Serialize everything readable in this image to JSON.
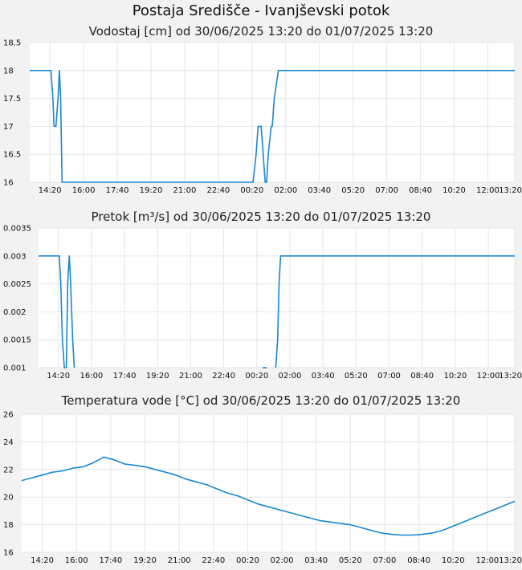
{
  "page": {
    "title": "Postaja Središče - Ivanjševski potok"
  },
  "colors": {
    "line": "#1a87d0",
    "grid": "#e6e6e6",
    "plot_bg": "#ffffff",
    "page_bg": "#f2f2f2"
  },
  "chart_data": [
    {
      "type": "line",
      "title": "Vodostaj [cm] od 30/06/2025 13:20 do 01/07/2025 13:20",
      "xlabel": "",
      "ylabel": "",
      "ylim": [
        16,
        18.5
      ],
      "yticks": [
        16,
        16.5,
        17,
        17.5,
        18,
        18.5
      ],
      "ytick_labels": [
        "16",
        "16.5",
        "17",
        "17.5",
        "18",
        "18.5"
      ],
      "xticks": [
        "14:20",
        "16:00",
        "17:40",
        "19:20",
        "21:00",
        "22:40",
        "00:20",
        "02:00",
        "03:40",
        "05:20",
        "07:00",
        "08:40",
        "10:20",
        "12:00",
        "13:20"
      ],
      "grid": true,
      "series": [
        {
          "x": [
            0,
            1.05,
            1.15,
            1.2,
            1.3,
            1.4,
            1.47,
            1.53,
            1.6,
            11.05,
            11.2,
            11.3,
            11.45,
            11.55,
            11.65,
            11.72,
            11.8,
            11.95,
            12.0,
            12.1,
            12.3,
            13.5,
            20,
            24
          ],
          "y": [
            18,
            18,
            17.5,
            17,
            17,
            17.5,
            18,
            17.5,
            16,
            16,
            16.5,
            17,
            17,
            16.5,
            16,
            16,
            16.5,
            17,
            17,
            17.5,
            18,
            18,
            18,
            18
          ]
        }
      ]
    },
    {
      "type": "line",
      "title": "Pretok [m³/s] od 30/06/2025 13:20 do 01/07/2025 13:20",
      "xlabel": "",
      "ylabel": "",
      "ylim": [
        0.001,
        0.0035
      ],
      "yticks": [
        0.001,
        0.0015,
        0.002,
        0.0025,
        0.003,
        0.0035
      ],
      "ytick_labels": [
        "0.001",
        "0.0015",
        "0.002",
        "0.0025",
        "0.003",
        "0.0035"
      ],
      "xticks": [
        "14:20",
        "16:00",
        "17:40",
        "19:20",
        "21:00",
        "22:40",
        "00:20",
        "02:00",
        "03:40",
        "05:20",
        "07:00",
        "08:40",
        "10:20",
        "12:00",
        "13:20"
      ],
      "grid": true,
      "series": [
        {
          "x": [
            0,
            1.05,
            1.12,
            1.2,
            1.3,
            1.4,
            1.47,
            1.55,
            1.62,
            1.72,
            1.8
          ],
          "y": [
            0.003,
            0.003,
            0.0025,
            0.0015,
            0.001,
            0.001,
            0.0025,
            0.003,
            0.0025,
            0.0015,
            0.001
          ]
        },
        {
          "x": [
            11.3,
            11.5
          ],
          "y": [
            0.001,
            0.001
          ]
        },
        {
          "x": [
            11.95,
            12.05,
            12.12,
            12.2,
            12.3,
            12.4,
            13.0,
            20,
            24
          ],
          "y": [
            0.001,
            0.0015,
            0.0025,
            0.003,
            0.003,
            0.003,
            0.003,
            0.003,
            0.003
          ]
        }
      ]
    },
    {
      "type": "line",
      "title": "Temperatura vode [°C] od 30/06/2025 13:20 do 01/07/2025 13:20",
      "xlabel": "",
      "ylabel": "",
      "ylim": [
        16,
        26
      ],
      "yticks": [
        16,
        18,
        20,
        22,
        24,
        26
      ],
      "ytick_labels": [
        "16",
        "18",
        "20",
        "22",
        "24",
        "26"
      ],
      "xticks": [
        "14:20",
        "16:00",
        "17:40",
        "19:20",
        "21:00",
        "22:40",
        "00:20",
        "02:00",
        "03:40",
        "05:20",
        "07:00",
        "08:40",
        "10:20",
        "12:00",
        "13:20"
      ],
      "grid": true,
      "series": [
        {
          "x": [
            0,
            0.5,
            1,
            1.5,
            2,
            2.5,
            3,
            3.5,
            4,
            4.5,
            5,
            5.5,
            6,
            6.5,
            7,
            7.5,
            8,
            8.5,
            9,
            9.5,
            10,
            10.5,
            11,
            11.5,
            12,
            12.5,
            13,
            13.5,
            14,
            14.5,
            15,
            15.5,
            16,
            16.5,
            17,
            17.5,
            18,
            18.5,
            19,
            19.5,
            20,
            20.5,
            21,
            21.5,
            22,
            22.5,
            23,
            23.5,
            24
          ],
          "y": [
            21.2,
            21.4,
            21.6,
            21.8,
            21.9,
            22.1,
            22.2,
            22.5,
            22.9,
            22.7,
            22.4,
            22.3,
            22.2,
            22.0,
            21.8,
            21.6,
            21.3,
            21.1,
            20.9,
            20.6,
            20.3,
            20.1,
            19.8,
            19.5,
            19.3,
            19.1,
            18.9,
            18.7,
            18.5,
            18.3,
            18.2,
            18.1,
            18.0,
            17.8,
            17.6,
            17.4,
            17.3,
            17.25,
            17.25,
            17.3,
            17.4,
            17.6,
            17.9,
            18.2,
            18.5,
            18.8,
            19.1,
            19.4,
            19.7
          ]
        }
      ]
    }
  ]
}
